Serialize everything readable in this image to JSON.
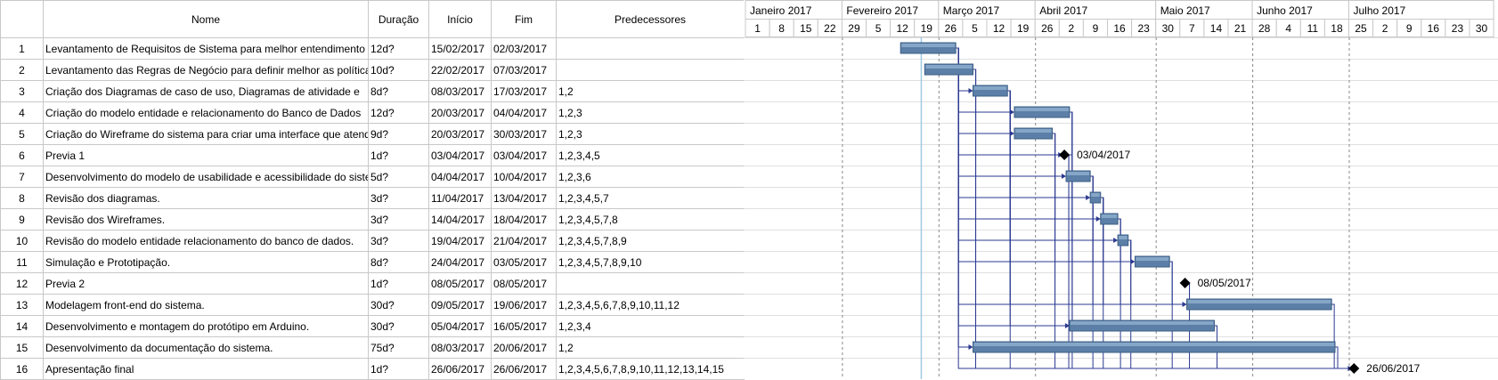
{
  "table": {
    "headers": {
      "num": "",
      "name": "Nome",
      "duration": "Duração",
      "start": "Início",
      "end": "Fim",
      "pred": "Predecessores"
    },
    "rows": [
      {
        "id": "1",
        "name": "Levantamento de Requisitos de Sistema para melhor entendimento",
        "duration": "12d?",
        "start": "15/02/2017",
        "end": "02/03/2017",
        "pred": ""
      },
      {
        "id": "2",
        "name": "Levantamento das Regras de Negócio para definir melhor as políticas",
        "duration": "10d?",
        "start": "22/02/2017",
        "end": "07/03/2017",
        "pred": ""
      },
      {
        "id": "3",
        "name": "Criação dos Diagramas de caso de uso, Diagramas de atividade e",
        "duration": "8d?",
        "start": "08/03/2017",
        "end": "17/03/2017",
        "pred": "1,2"
      },
      {
        "id": "4",
        "name": "Criação do modelo entidade e relacionamento do Banco de Dados",
        "duration": "12d?",
        "start": "20/03/2017",
        "end": "04/04/2017",
        "pred": "1,2,3"
      },
      {
        "id": "5",
        "name": "Criação do Wireframe do sistema para criar uma interface que atenda",
        "duration": "9d?",
        "start": "20/03/2017",
        "end": "30/03/2017",
        "pred": "1,2,3"
      },
      {
        "id": "6",
        "name": "Previa 1",
        "duration": "1d?",
        "start": "03/04/2017",
        "end": "03/04/2017",
        "pred": "1,2,3,4,5"
      },
      {
        "id": "7",
        "name": "Desenvolvimento do modelo de usabilidade e acessibilidade do sistema",
        "duration": "5d?",
        "start": "04/04/2017",
        "end": "10/04/2017",
        "pred": "1,2,3,6"
      },
      {
        "id": "8",
        "name": "Revisão dos diagramas.",
        "duration": "3d?",
        "start": "11/04/2017",
        "end": "13/04/2017",
        "pred": "1,2,3,4,5,7"
      },
      {
        "id": "9",
        "name": "Revisão dos Wireframes.",
        "duration": "3d?",
        "start": "14/04/2017",
        "end": "18/04/2017",
        "pred": "1,2,3,4,5,7,8"
      },
      {
        "id": "10",
        "name": "Revisão do modelo entidade relacionamento do banco de dados.",
        "duration": "3d?",
        "start": "19/04/2017",
        "end": "21/04/2017",
        "pred": "1,2,3,4,5,7,8,9"
      },
      {
        "id": "11",
        "name": "Simulação e Prototipação.",
        "duration": "8d?",
        "start": "24/04/2017",
        "end": "03/05/2017",
        "pred": "1,2,3,4,5,7,8,9,10"
      },
      {
        "id": "12",
        "name": "Previa 2",
        "duration": "1d?",
        "start": "08/05/2017",
        "end": "08/05/2017",
        "pred": ""
      },
      {
        "id": "13",
        "name": "Modelagem front-end do sistema.",
        "duration": "30d?",
        "start": "09/05/2017",
        "end": "19/06/2017",
        "pred": "1,2,3,4,5,6,7,8,9,10,11,12"
      },
      {
        "id": "14",
        "name": "Desenvolvimento e montagem do protótipo em Arduino.",
        "duration": "30d?",
        "start": "05/04/2017",
        "end": "16/05/2017",
        "pred": "1,2,3,4"
      },
      {
        "id": "15",
        "name": "Desenvolvimento da documentação do sistema.",
        "duration": "75d?",
        "start": "08/03/2017",
        "end": "20/06/2017",
        "pred": "1,2"
      },
      {
        "id": "16",
        "name": "Apresentação final",
        "duration": "1d?",
        "start": "26/06/2017",
        "end": "26/06/2017",
        "pred": "1,2,3,4,5,6,7,8,9,10,11,12,13,14,15"
      }
    ]
  },
  "gantt": {
    "months": [
      {
        "label": "Janeiro 2017",
        "weeks": [
          "1",
          "8",
          "15",
          "22"
        ]
      },
      {
        "label": "Fevereiro 2017",
        "weeks": [
          "29",
          "5",
          "12",
          "19"
        ]
      },
      {
        "label": "Março 2017",
        "weeks": [
          "26",
          "5",
          "12",
          "19"
        ]
      },
      {
        "label": "Abril 2017",
        "weeks": [
          "26",
          "2",
          "9",
          "16",
          "23"
        ]
      },
      {
        "label": "Maio 2017",
        "weeks": [
          "30",
          "7",
          "14",
          "21"
        ]
      },
      {
        "label": "Junho 2017",
        "weeks": [
          "28",
          "4",
          "11",
          "18"
        ]
      },
      {
        "label": "Julho 2017",
        "weeks": [
          "25",
          "2",
          "9",
          "16",
          "23",
          "30"
        ]
      }
    ],
    "milestone_labels": {
      "6": "03/04/2017",
      "12": "08/05/2017",
      "16": "26/06/2017"
    },
    "colors": {
      "bar": "#5b7fa6",
      "link": "#2b3990",
      "milestone": "#000000",
      "grid": "#c8c8c8",
      "today": "#9ecae1"
    }
  }
}
